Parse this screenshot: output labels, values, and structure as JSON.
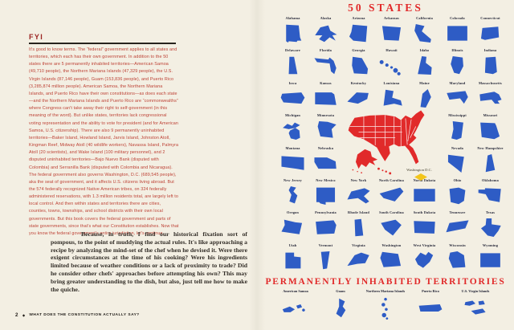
{
  "left_page": {
    "fyi": {
      "heading": "FYI",
      "body": "It's good to know terms. The “federal” government applies to all states and territories, which each has their own government. In addition to the 50 states there are 5 permanently inhabited territories—American Samoa (49,710 people), the Northern Mariana Islands (47,329 people), the U.S. Virgin Islands (87,146 people), Guam (153,836 people), and Puerto Rico (3,285,874 million people). American Samoa, the Northern Mariana Islands, and Puerto Rico have their own constitutions—as does each state—and the Northern Mariana Islands and Puerto Rico are “commonwealths” where Congress can't take away their right to self-government (in this meaning of the word). But unlike states, territories lack congressional voting representation and the ability to vote for president (and for American Samoa, U.S. citizenship). There are also 9 permanently uninhabited territories—Baker Island, Howland Island, Jarvis Island, Johnston Atoll, Kingman Reef, Midway Atoll (40 wildlife workers), Navassa Island, Palmyra Atoll (20 scientists), and Wake Island (100 military personnel), and 2 disputed uninhabited territories—Bajo Nuevo Bank (disputed with Colombia) and Serranilla Bank (disputed with Colombia and Nicaragua). The federal government also governs Washington, D.C. (689,545 people), aka the seat of government, and it affects U.S. citizens living abroad. But the 574 federally recognized Native American tribes, on 324 federally administered reservations, with 1.3 million residents total, are largely left to local control. And then within states and territories there are cities, counties, towns, townships, and school districts with their own local governments. But this book covers the federal government and parts of state governments, since that's what our Constitution establishes. Now that you know the federal government's entire jurisdiction, let's continue."
    },
    "serif_paragraph": "Because, in truth, I find our historical fixation sort of pompous, to the point of muddying the actual rules. It's like approaching a recipe by analyzing the mind-set of the chef when he devised it. Were there exigent circumstances at the time of his cooking? Were his ingredients limited because of weather conditions or a lack of proximity to trade? Did he consider other chefs' approaches before attempting his own? This may bring greater understanding to the dish, but also, just tell me how to make the quiche.",
    "footer": {
      "page_number": "2",
      "separator": "◆",
      "running_title": "WHAT DOES THE CONSTITUTION ACTUALLY SAY?"
    }
  },
  "right_page": {
    "title": "50 STATES",
    "states": [
      "Alabama",
      "Alaska",
      "Arizona",
      "Arkansas",
      "California",
      "Colorado",
      "Connecticut",
      "Delaware",
      "Florida",
      "Georgia",
      "Hawaii",
      "Idaho",
      "Illinois",
      "Indiana",
      "Iowa",
      "Kansas",
      "Kentucky",
      "Louisiana",
      "Maine",
      "Maryland",
      "Massachusetts",
      "Michigan",
      "Minnesota",
      "Mississippi",
      "Missouri",
      "Montana",
      "Nebraska",
      "Nevada",
      "New Hampshire",
      "New Jersey",
      "New Mexico",
      "New York",
      "North Carolina",
      "North Dakota",
      "Ohio",
      "Oklahoma",
      "Oregon",
      "Pennsylvania",
      "Rhode Island",
      "South Carolina",
      "South Dakota",
      "Tennessee",
      "Texas",
      "Utah",
      "Vermont",
      "Virginia",
      "Washington",
      "West Virginia",
      "Wisconsin",
      "Wyoming"
    ],
    "map_label": "Washington D.C.",
    "territories_title": "PERMANENTLY INHABITED TERRITORIES",
    "territories": [
      "American Samoa",
      "Guam",
      "Northern Mariana Islands",
      "Puerto Rico",
      "U.S. Virgin Islands"
    ]
  },
  "colors": {
    "background": "#f3efe3",
    "state_blue": "#2e5cc5",
    "map_red": "#e12a2a",
    "fyi_text_red": "#bd4034",
    "fyi_heading_red": "#9b2422",
    "ink": "#1e1a16",
    "dc_yellow": "#f2c51c"
  }
}
